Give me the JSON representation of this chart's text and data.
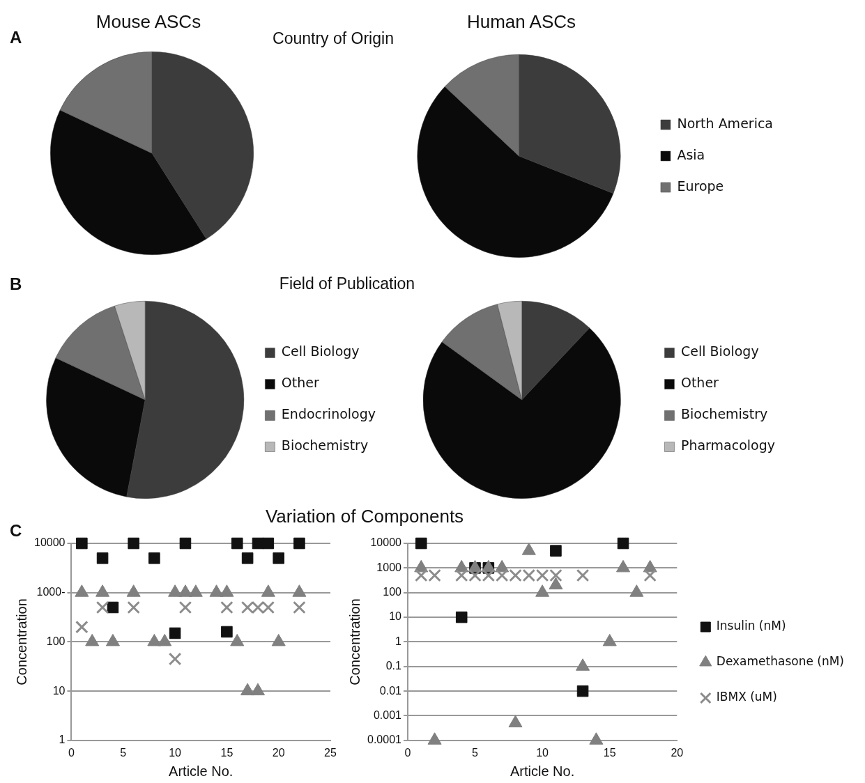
{
  "chart_data": [
    {
      "type": "pie",
      "title": "Mouse ASCs",
      "subtitle": "Country of Origin",
      "annotations": [
        "A"
      ],
      "categories": [
        null,
        null,
        null
      ],
      "values": [
        41,
        41,
        18
      ],
      "colors": [
        "#3c3c3c",
        "#0a0a0a",
        "#707070"
      ],
      "legend": false
    },
    {
      "type": "pie",
      "title": "Human ASCs",
      "categories": [
        "North America",
        "Asia",
        "Europe"
      ],
      "values": [
        31,
        56,
        13
      ],
      "colors": [
        "#3c3c3c",
        "#0a0a0a",
        "#707070"
      ],
      "legend": "right"
    },
    {
      "type": "pie",
      "subtitle": "Field of Publication",
      "annotations": [
        "B"
      ],
      "categories": [
        "Cell Biology",
        "Other",
        "Endocrinology",
        "Biochemistry"
      ],
      "values": [
        53,
        29,
        13,
        5
      ],
      "colors": [
        "#3c3c3c",
        "#0a0a0a",
        "#707070",
        "#b8b8b8"
      ],
      "legend": "right"
    },
    {
      "type": "pie",
      "categories": [
        "Cell Biology",
        "Other",
        "Biochemistry",
        "Pharmacology"
      ],
      "values": [
        12,
        73,
        11,
        4
      ],
      "colors": [
        "#3c3c3c",
        "#0a0a0a",
        "#707070",
        "#b8b8b8"
      ],
      "legend": "right"
    },
    {
      "type": "scatter",
      "title": "Variation of Components",
      "annotations": [
        "C"
      ],
      "xlabel": "Article No.",
      "ylabel": "Concentration",
      "log": "y",
      "grid": "y",
      "legend": false,
      "xlim": [
        0,
        25
      ],
      "xticks": [
        0,
        5,
        10,
        15,
        20,
        25
      ],
      "ylim": [
        1,
        10000
      ],
      "yticks": [
        1,
        10,
        100,
        {
          "value": 1000,
          "label": "1000-"
        },
        10000
      ],
      "series": [
        {
          "color": "#111111",
          "marker": "square",
          "x": [
            1,
            3,
            4,
            6,
            8,
            10,
            11,
            15,
            16,
            17,
            18,
            19,
            20,
            22
          ],
          "values": [
            10000,
            5000,
            500,
            10000,
            5000,
            150,
            10000,
            160,
            10000,
            5000,
            10000,
            10000,
            5000,
            10000
          ]
        },
        {
          "color": "#808080",
          "marker": "triangle",
          "x": [
            1,
            2,
            3,
            4,
            6,
            8,
            9,
            10,
            11,
            12,
            14,
            15,
            16,
            17,
            18,
            19,
            20,
            22
          ],
          "values": [
            1000,
            100,
            1000,
            100,
            1000,
            100,
            100,
            1000,
            1000,
            1000,
            1000,
            1000,
            100,
            10,
            10,
            1000,
            100,
            1000
          ]
        },
        {
          "color": "#8c8c8c",
          "marker": "cross",
          "x": [
            1,
            3,
            6,
            10,
            11,
            15,
            17,
            18,
            19,
            22
          ],
          "values": [
            200,
            500,
            500,
            45,
            500,
            500,
            500,
            500,
            500,
            500
          ]
        }
      ]
    },
    {
      "type": "scatter",
      "xlabel": "Article No.",
      "ylabel": "Concentration",
      "log": "y",
      "grid": "y",
      "legend": "right",
      "xlim": [
        0,
        20
      ],
      "xticks": [
        0,
        5,
        10,
        15,
        20
      ],
      "ylim": [
        0.0001,
        10000
      ],
      "yticks": [
        0.0001,
        0.001,
        0.01,
        0.1,
        1,
        10,
        100,
        1000,
        10000
      ],
      "series": [
        {
          "name": "Insulin (nM)",
          "color": "#111111",
          "marker": "square",
          "x": [
            1,
            4,
            5,
            6,
            11,
            13,
            16
          ],
          "values": [
            10000,
            10,
            1000,
            1000,
            5000,
            0.01,
            10000
          ]
        },
        {
          "name": "Dexamethasone (nM)",
          "color": "#808080",
          "marker": "triangle",
          "x": [
            1,
            2,
            4,
            5,
            6,
            7,
            8,
            9,
            10,
            11,
            13,
            14,
            15,
            16,
            17,
            18
          ],
          "values": [
            1000,
            0.0001,
            1000,
            1000,
            1000,
            1000,
            0.0005,
            5000,
            100,
            200,
            0.1,
            0.0001,
            1,
            1000,
            100,
            1000
          ]
        },
        {
          "name": "IBMX (uM)",
          "color": "#8c8c8c",
          "marker": "cross",
          "x": [
            1,
            2,
            4,
            5,
            6,
            7,
            8,
            9,
            10,
            11,
            13,
            18
          ],
          "values": [
            500,
            500,
            500,
            500,
            500,
            500,
            500,
            500,
            500,
            500,
            500,
            500
          ]
        }
      ]
    }
  ]
}
